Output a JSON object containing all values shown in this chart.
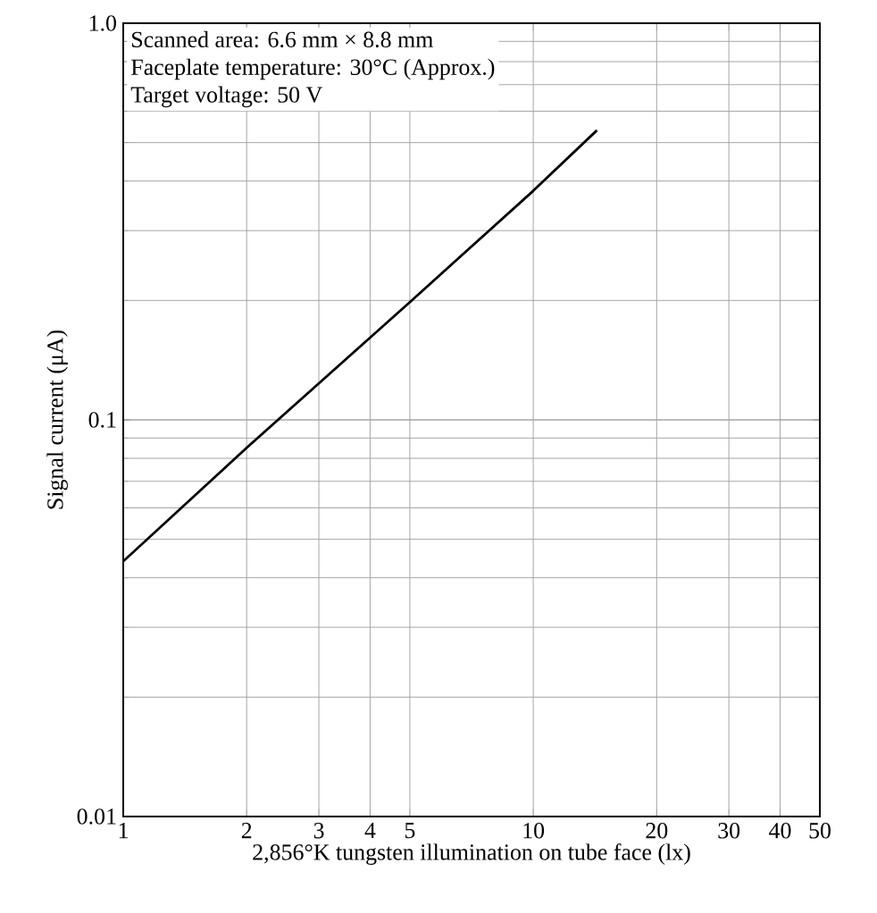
{
  "chart_data": {
    "type": "line",
    "xlabel": "2,856°K tungsten illumination on tube face (lx)",
    "ylabel": "Signal current (μA)",
    "annotations": [
      "Scanned area: 6.6 mm × 8.8 mm",
      "Faceplate temperature: 30°C (Approx.)",
      "Target voltage: 50 V"
    ],
    "log": "xy",
    "grid": true,
    "marker": "none",
    "line_style": "solid",
    "xlim": [
      1,
      50
    ],
    "ylim": [
      0.01,
      1
    ],
    "xticks": [
      1,
      2,
      3,
      4,
      5,
      10,
      20,
      30,
      40,
      50
    ],
    "yticks": [
      0.01,
      0.1,
      {
        "value": 1,
        "label": "1.0"
      }
    ],
    "series": [
      {
        "color": "#000000",
        "x": [
          1,
          2,
          5,
          10,
          14.3
        ],
        "values": [
          0.044,
          0.085,
          0.198,
          0.378,
          0.537
        ]
      }
    ]
  }
}
